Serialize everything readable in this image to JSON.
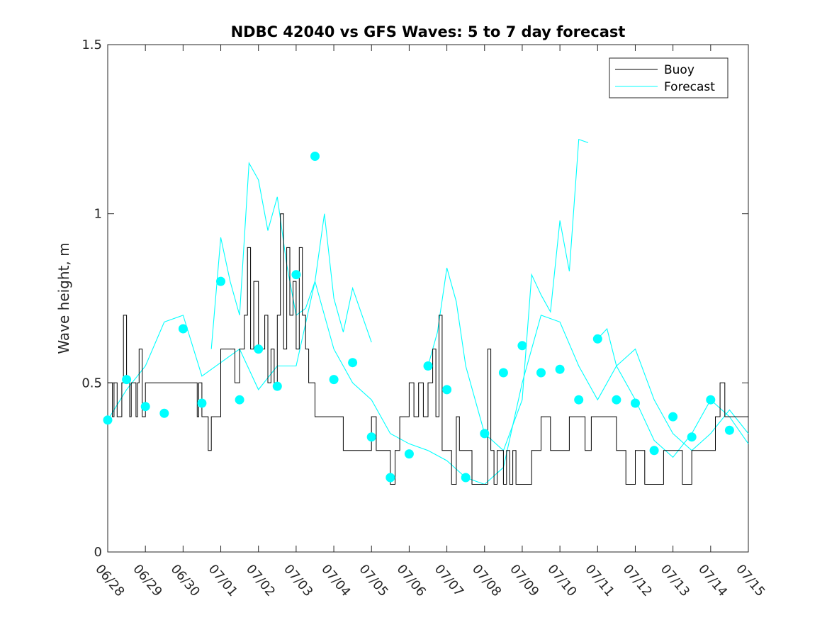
{
  "chart_data": {
    "type": "line",
    "title": "NDBC 42040 vs GFS Waves: 5 to 7 day forecast",
    "xlabel": "",
    "ylabel": "Wave height, m",
    "x_tick_labels": [
      "06/28",
      "06/29",
      "06/30",
      "07/01",
      "07/02",
      "07/03",
      "07/04",
      "07/05",
      "07/06",
      "07/07",
      "07/08",
      "07/09",
      "07/10",
      "07/11",
      "07/12",
      "07/13",
      "07/14",
      "07/15"
    ],
    "x_tick_dates": [
      "2019-06-28",
      "2019-06-29",
      "2019-06-30",
      "2019-07-01",
      "2019-07-02",
      "2019-07-03",
      "2019-07-04",
      "2019-07-05",
      "2019-07-06",
      "2019-07-07",
      "2019-07-08",
      "2019-07-09",
      "2019-07-10",
      "2019-07-11",
      "2019-07-12",
      "2019-07-13",
      "2019-07-14",
      "2019-07-15"
    ],
    "y_ticks": [
      0,
      0.5,
      1,
      1.5
    ],
    "y_tick_labels": [
      "0",
      "0.5",
      "1",
      "1.5"
    ],
    "ylim": [
      0,
      1.5
    ],
    "grid": false,
    "legend": {
      "placement": "top-right",
      "entries": [
        "Buoy",
        "Forecast"
      ]
    },
    "colors": {
      "buoy": "#000000",
      "forecast": "#00ffff"
    },
    "series": [
      {
        "name": "Buoy",
        "x": [
          "06/28 00:00",
          "06/28 03:00",
          "06/28 04:00",
          "06/28 06:00",
          "06/28 09:00",
          "06/28 10:00",
          "06/28 12:00",
          "06/28 14:00",
          "06/28 15:00",
          "06/28 18:00",
          "06/28 19:00",
          "06/28 20:00",
          "06/28 22:00",
          "06/29 00:00",
          "06/29 02:00",
          "06/29 04:00",
          "06/29 06:00",
          "06/29 08:00",
          "06/29 10:00",
          "06/29 12:00",
          "06/30 00:00",
          "06/30 06:00",
          "06/30 09:00",
          "06/30 10:00",
          "06/30 12:00",
          "06/30 14:00",
          "06/30 16:00",
          "06/30 18:00",
          "06/30 20:00",
          "06/30 22:00",
          "07/01 00:00",
          "07/01 02:00",
          "07/01 04:00",
          "07/01 06:00",
          "07/01 09:00",
          "07/01 12:00",
          "07/01 15:00",
          "07/01 17:00",
          "07/01 19:00",
          "07/01 21:00",
          "07/02 00:00",
          "07/02 02:00",
          "07/02 04:00",
          "07/02 06:00",
          "07/02 08:00",
          "07/02 10:00",
          "07/02 12:00",
          "07/02 14:00",
          "07/02 16:00",
          "07/02 18:00",
          "07/02 20:00",
          "07/02 22:00",
          "07/03 00:00",
          "07/03 02:00",
          "07/03 04:00",
          "07/03 06:00",
          "07/03 08:00",
          "07/03 10:00",
          "07/03 12:00",
          "07/03 16:00",
          "07/03 20:00",
          "07/04 00:00",
          "07/04 06:00",
          "07/04 12:00",
          "07/04 18:00",
          "07/05 00:00",
          "07/05 03:00",
          "07/05 06:00",
          "07/05 12:00",
          "07/05 15:00",
          "07/05 18:00",
          "07/05 21:00",
          "07/06 00:00",
          "07/06 03:00",
          "07/06 06:00",
          "07/06 09:00",
          "07/06 12:00",
          "07/06 15:00",
          "07/06 17:00",
          "07/06 19:00",
          "07/06 21:00",
          "07/07 00:00",
          "07/07 03:00",
          "07/07 06:00",
          "07/07 08:00",
          "07/07 10:00",
          "07/07 12:00",
          "07/07 16:00",
          "07/07 20:00",
          "07/08 00:00",
          "07/08 02:00",
          "07/08 04:00",
          "07/08 06:00",
          "07/08 08:00",
          "07/08 10:00",
          "07/08 12:00",
          "07/08 14:00",
          "07/08 16:00",
          "07/08 18:00",
          "07/08 20:00",
          "07/08 22:00",
          "07/09 00:00",
          "07/09 06:00",
          "07/09 12:00",
          "07/09 18:00",
          "07/10 00:00",
          "07/10 06:00",
          "07/10 12:00",
          "07/10 16:00",
          "07/10 20:00",
          "07/11 00:00",
          "07/11 06:00",
          "07/11 12:00",
          "07/11 18:00",
          "07/12 00:00",
          "07/12 06:00",
          "07/12 12:00",
          "07/12 18:00",
          "07/13 00:00",
          "07/13 06:00",
          "07/13 12:00",
          "07/13 18:00",
          "07/14 00:00",
          "07/14 03:00",
          "07/14 06:00",
          "07/14 09:00",
          "07/14 12:00",
          "07/14 18:00",
          "07/15 00:00"
        ],
        "values": [
          0.5,
          0.4,
          0.5,
          0.4,
          0.5,
          0.7,
          0.5,
          0.4,
          0.5,
          0.4,
          0.5,
          0.6,
          0.4,
          0.5,
          0.5,
          0.5,
          0.5,
          0.5,
          0.5,
          0.5,
          0.5,
          0.5,
          0.4,
          0.5,
          0.4,
          0.4,
          0.3,
          0.4,
          0.4,
          0.4,
          0.6,
          0.6,
          0.6,
          0.6,
          0.5,
          0.6,
          0.7,
          0.9,
          0.6,
          0.8,
          0.6,
          0.6,
          0.7,
          0.5,
          0.6,
          0.5,
          0.7,
          1.0,
          0.6,
          0.9,
          0.7,
          0.8,
          0.6,
          0.9,
          0.7,
          0.6,
          0.5,
          0.5,
          0.4,
          0.4,
          0.4,
          0.4,
          0.3,
          0.3,
          0.3,
          0.4,
          0.3,
          0.3,
          0.2,
          0.3,
          0.4,
          0.4,
          0.5,
          0.4,
          0.5,
          0.4,
          0.5,
          0.6,
          0.4,
          0.7,
          0.3,
          0.3,
          0.2,
          0.4,
          0.3,
          0.3,
          0.3,
          0.2,
          0.2,
          0.2,
          0.6,
          0.3,
          0.2,
          0.3,
          0.3,
          0.2,
          0.3,
          0.2,
          0.3,
          0.2,
          0.2,
          0.2,
          0.3,
          0.4,
          0.3,
          0.3,
          0.4,
          0.4,
          0.3,
          0.4,
          0.4,
          0.4,
          0.3,
          0.2,
          0.3,
          0.2,
          0.2,
          0.3,
          0.3,
          0.2,
          0.3,
          0.3,
          0.3,
          0.4,
          0.5,
          0.4,
          0.4,
          0.4,
          0.4
        ]
      },
      {
        "name": "Forecast",
        "runs": [
          {
            "x": [
              "06/28 00:00",
              "06/28 12:00",
              "06/29 00:00",
              "06/29 12:00",
              "06/30 00:00",
              "06/30 12:00",
              "07/01 00:00",
              "07/01 12:00",
              "07/02 00:00",
              "07/02 12:00",
              "07/03 00:00",
              "07/03 12:00",
              "07/04 00:00",
              "07/04 12:00",
              "07/05 00:00",
              "07/05 12:00",
              "07/06 00:00",
              "07/06 12:00",
              "07/07 00:00",
              "07/07 12:00",
              "07/08 00:00",
              "07/08 12:00",
              "07/09 00:00",
              "07/09 12:00",
              "07/10 00:00",
              "07/10 12:00",
              "07/11 00:00",
              "07/11 12:00",
              "07/12 00:00",
              "07/12 12:00",
              "07/13 00:00",
              "07/13 12:00",
              "07/14 00:00",
              "07/14 12:00",
              "07/15 00:00"
            ],
            "values": [
              0.39,
              0.48,
              0.55,
              0.68,
              0.7,
              0.52,
              0.56,
              0.6,
              0.48,
              0.55,
              0.55,
              0.8,
              0.6,
              0.5,
              0.45,
              0.35,
              0.32,
              0.3,
              0.27,
              0.22,
              0.2,
              0.25,
              0.5,
              0.7,
              0.68,
              0.55,
              0.45,
              0.55,
              0.6,
              0.45,
              0.35,
              0.3,
              0.35,
              0.42,
              0.35
            ]
          },
          {
            "x": [
              "06/30 18:00",
              "07/01 00:00",
              "07/01 06:00",
              "07/01 12:00",
              "07/01 18:00",
              "07/02 00:00",
              "07/02 06:00",
              "07/02 12:00",
              "07/02 18:00",
              "07/03 00:00",
              "07/03 06:00",
              "07/03 12:00",
              "07/03 18:00",
              "07/04 00:00",
              "07/04 06:00",
              "07/04 12:00",
              "07/04 18:00",
              "07/05 00:00"
            ],
            "values": [
              0.6,
              0.93,
              0.8,
              0.7,
              1.15,
              1.1,
              0.95,
              1.05,
              0.85,
              0.7,
              0.72,
              0.8,
              1.0,
              0.75,
              0.65,
              0.78,
              0.7,
              0.62
            ]
          },
          {
            "x": [
              "07/06 12:00",
              "07/06 18:00",
              "07/07 00:00",
              "07/07 06:00",
              "07/07 12:00",
              "07/08 00:00",
              "07/08 12:00",
              "07/09 00:00",
              "07/09 06:00",
              "07/09 12:00",
              "07/09 18:00",
              "07/10 00:00",
              "07/10 06:00",
              "07/10 12:00",
              "07/10 18:00"
            ],
            "values": [
              0.55,
              0.65,
              0.84,
              0.74,
              0.55,
              0.35,
              0.3,
              0.45,
              0.82,
              0.76,
              0.71,
              0.98,
              0.83,
              1.22,
              1.21
            ]
          },
          {
            "x": [
              "07/11 00:00",
              "07/11 06:00",
              "07/11 12:00",
              "07/12 00:00",
              "07/12 12:00",
              "07/13 00:00",
              "07/13 12:00",
              "07/14 00:00",
              "07/14 12:00",
              "07/15 00:00"
            ],
            "values": [
              0.63,
              0.66,
              0.55,
              0.45,
              0.33,
              0.28,
              0.35,
              0.45,
              0.4,
              0.32
            ]
          }
        ],
        "markers": {
          "x": [
            "06/28 00:00",
            "06/28 12:00",
            "06/29 00:00",
            "06/29 12:00",
            "06/30 00:00",
            "06/30 12:00",
            "07/01 00:00",
            "07/01 12:00",
            "07/02 00:00",
            "07/02 12:00",
            "07/03 00:00",
            "07/03 12:00",
            "07/04 00:00",
            "07/04 12:00",
            "07/05 00:00",
            "07/05 12:00",
            "07/06 00:00",
            "07/06 12:00",
            "07/07 00:00",
            "07/07 12:00",
            "07/08 00:00",
            "07/08 12:00",
            "07/09 00:00",
            "07/09 12:00",
            "07/10 00:00",
            "07/10 12:00",
            "07/11 00:00",
            "07/11 12:00",
            "07/12 00:00",
            "07/12 12:00",
            "07/13 00:00",
            "07/13 12:00",
            "07/14 00:00",
            "07/14 12:00"
          ],
          "values": [
            0.39,
            0.51,
            0.43,
            0.41,
            0.66,
            0.44,
            0.8,
            0.45,
            0.6,
            0.49,
            0.82,
            1.17,
            0.51,
            0.56,
            0.34,
            0.22,
            0.29,
            0.55,
            0.48,
            0.22,
            0.35,
            0.53,
            0.61,
            0.53,
            0.54,
            0.45,
            0.63,
            0.45,
            0.44,
            0.3,
            0.4,
            0.34,
            0.45,
            0.36
          ]
        }
      }
    ]
  }
}
